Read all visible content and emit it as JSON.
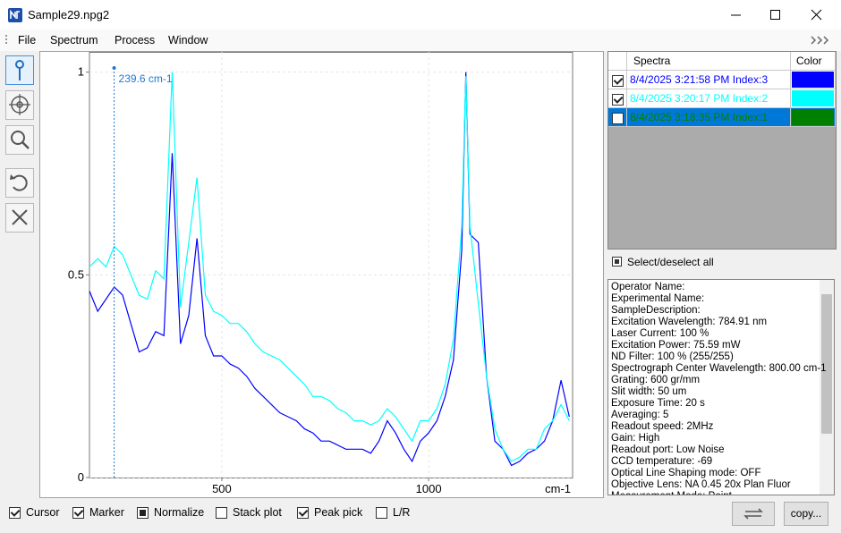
{
  "window": {
    "title": "Sample29.npg2"
  },
  "menu": [
    "File",
    "Spectrum",
    "Process",
    "Window"
  ],
  "chart_data": {
    "type": "line",
    "x_label": "cm-1",
    "x": [
      180,
      200,
      220,
      240,
      260,
      280,
      300,
      320,
      340,
      360,
      380,
      400,
      420,
      440,
      460,
      480,
      500,
      520,
      540,
      560,
      580,
      600,
      620,
      640,
      660,
      680,
      700,
      720,
      740,
      760,
      780,
      800,
      820,
      840,
      860,
      880,
      900,
      920,
      940,
      960,
      980,
      1000,
      1020,
      1040,
      1060,
      1080,
      1090,
      1100,
      1120,
      1140,
      1160,
      1180,
      1200,
      1220,
      1240,
      1260,
      1280,
      1300,
      1320,
      1340
    ],
    "series": [
      {
        "name": "8/4/2025 3:21:58 PM Index:3",
        "color": "#0000ff",
        "visible": true,
        "values": [
          0.46,
          0.41,
          0.44,
          0.47,
          0.45,
          0.38,
          0.31,
          0.32,
          0.36,
          0.35,
          0.8,
          0.33,
          0.4,
          0.59,
          0.35,
          0.3,
          0.3,
          0.28,
          0.27,
          0.25,
          0.22,
          0.2,
          0.18,
          0.16,
          0.15,
          0.14,
          0.12,
          0.11,
          0.09,
          0.09,
          0.08,
          0.07,
          0.07,
          0.07,
          0.06,
          0.09,
          0.14,
          0.11,
          0.07,
          0.04,
          0.09,
          0.11,
          0.14,
          0.2,
          0.29,
          0.56,
          1.0,
          0.6,
          0.58,
          0.25,
          0.09,
          0.07,
          0.03,
          0.04,
          0.06,
          0.07,
          0.09,
          0.14,
          0.24,
          0.15
        ]
      },
      {
        "name": "8/4/2025 3:20:17 PM Index:2",
        "color": "#00ffff",
        "visible": true,
        "values": [
          0.52,
          0.54,
          0.52,
          0.57,
          0.55,
          0.5,
          0.45,
          0.44,
          0.51,
          0.49,
          1.0,
          0.42,
          0.58,
          0.74,
          0.45,
          0.41,
          0.4,
          0.38,
          0.38,
          0.36,
          0.33,
          0.31,
          0.3,
          0.29,
          0.27,
          0.25,
          0.23,
          0.2,
          0.2,
          0.19,
          0.17,
          0.16,
          0.14,
          0.14,
          0.13,
          0.14,
          0.17,
          0.15,
          0.12,
          0.09,
          0.14,
          0.14,
          0.17,
          0.23,
          0.34,
          0.62,
          0.99,
          0.62,
          0.43,
          0.25,
          0.12,
          0.07,
          0.04,
          0.05,
          0.07,
          0.07,
          0.12,
          0.14,
          0.18,
          0.14
        ]
      },
      {
        "name": "8/4/2025 3:18:35 PM Index:1",
        "color": "#008000",
        "visible": false,
        "values": [
          null,
          null,
          null,
          null,
          null,
          null,
          null,
          null,
          null,
          null,
          null,
          null,
          null,
          null,
          null,
          null,
          null,
          null,
          null,
          null,
          null,
          null,
          null,
          null,
          null,
          null,
          null,
          null,
          null,
          null,
          null,
          null,
          null,
          null,
          null,
          null,
          null,
          null,
          null,
          null,
          null,
          null,
          null,
          null,
          null,
          null,
          null,
          null,
          null,
          null,
          null,
          null,
          null,
          null,
          null,
          null,
          null,
          null,
          null,
          null
        ]
      }
    ],
    "xlim": [
      180,
      1348
    ],
    "ylim": [
      0,
      1.05
    ],
    "xticks": [
      500,
      1000
    ],
    "yticks": [
      0,
      0.5,
      1
    ],
    "grid": true,
    "cursor": {
      "x": 239.6,
      "label": "239.6 cm-1"
    }
  },
  "spectra_panel": {
    "header": [
      "Spectra",
      "Color"
    ],
    "selected_row": 2,
    "select_all": "Select/deselect all"
  },
  "info": [
    "Operator Name:",
    "Experimental Name:",
    "SampleDescription:",
    "Excitation Wavelength: 784.91 nm",
    "Laser Current: 100 %",
    "Excitation Power: 75.59 mW",
    "ND Filter: 100 % (255/255)",
    "Spectrograph Center Wavelength: 800.00 cm-1",
    "Grating: 600 gr/mm",
    "Slit width: 50 um",
    "Exposure Time: 20 s",
    "Averaging: 5",
    "Readout speed: 2MHz",
    "Gain: High",
    "Readout port: Low Noise",
    "CCD temperature: -69",
    "Optical Line Shaping mode: OFF",
    "Objective Lens: NA 0.45 20x Plan Fluor",
    "Measurement Mode: Point"
  ],
  "options": [
    {
      "label": "Cursor",
      "state": "checked"
    },
    {
      "label": "Marker",
      "state": "checked"
    },
    {
      "label": "Normalize",
      "state": "filled"
    },
    {
      "label": "Stack plot",
      "state": "unchecked"
    },
    {
      "label": "Peak pick",
      "state": "checked"
    },
    {
      "label": "L/R",
      "state": "unchecked"
    }
  ],
  "copy_button": "copy..."
}
